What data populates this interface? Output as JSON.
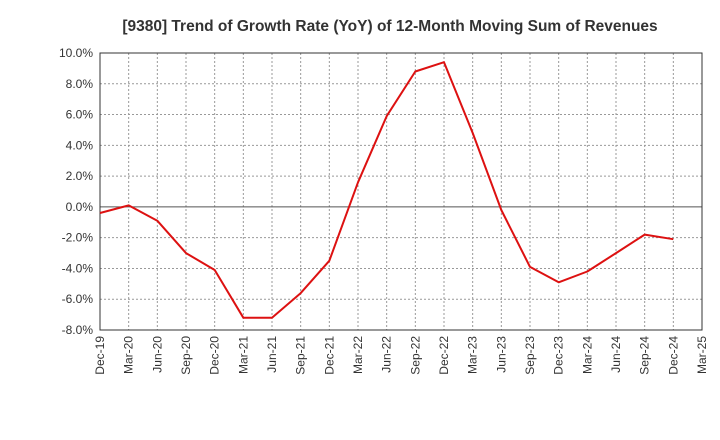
{
  "chart_data": {
    "type": "line",
    "title": "[9380]  Trend of Growth Rate (YoY) of 12-Month Moving Sum of Revenues",
    "xlabel": "",
    "ylabel": "",
    "ylim": [
      -8.0,
      10.0
    ],
    "yticks": [
      -8.0,
      -6.0,
      -4.0,
      -2.0,
      0.0,
      2.0,
      4.0,
      6.0,
      8.0,
      10.0
    ],
    "ytick_labels": [
      "-8.0%",
      "-6.0%",
      "-4.0%",
      "-2.0%",
      "0.0%",
      "2.0%",
      "4.0%",
      "6.0%",
      "8.0%",
      "10.0%"
    ],
    "xtick_labels": [
      "Dec-19",
      "Mar-20",
      "Jun-20",
      "Sep-20",
      "Dec-20",
      "Mar-21",
      "Jun-21",
      "Sep-21",
      "Dec-21",
      "Mar-22",
      "Jun-22",
      "Sep-22",
      "Dec-22",
      "Mar-23",
      "Jun-23",
      "Sep-23",
      "Dec-23",
      "Mar-24",
      "Jun-24",
      "Sep-24",
      "Dec-24",
      "Mar-25"
    ],
    "grid": true,
    "legend": "none",
    "line_color": "#dd1111",
    "series": [
      {
        "x": [
          "Dec-19",
          "Mar-20",
          "Jun-20",
          "Sep-20",
          "Dec-20",
          "Mar-21",
          "Jun-21",
          "Sep-21",
          "Dec-21",
          "Mar-22",
          "Jun-22",
          "Sep-22",
          "Dec-22",
          "Mar-23",
          "Jun-23",
          "Sep-23",
          "Dec-23",
          "Mar-24",
          "Jun-24",
          "Sep-24",
          "Dec-24"
        ],
        "values": [
          -0.4,
          0.1,
          -0.9,
          -3.0,
          -4.1,
          -7.2,
          -7.2,
          -5.6,
          -3.5,
          1.6,
          5.9,
          8.8,
          9.4,
          4.8,
          -0.2,
          -3.9,
          -4.9,
          -4.2,
          -3.0,
          -1.8,
          -2.1
        ]
      }
    ]
  }
}
